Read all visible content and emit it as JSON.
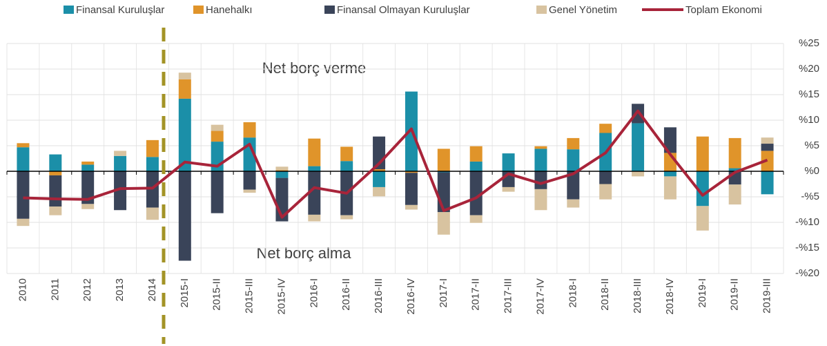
{
  "chart_data": {
    "type": "bar",
    "categories": [
      "2010",
      "2011",
      "2012",
      "2013",
      "2014",
      "2015-I",
      "2015-II",
      "2015-III",
      "2015-IV",
      "2016-I",
      "2016-II",
      "2016-III",
      "2016-IV",
      "2017-I",
      "2017-II",
      "2017-III",
      "2017-IV",
      "2018-I",
      "2018-II",
      "2018-III",
      "2018-IV",
      "2019-I",
      "2019-II",
      "2019-III"
    ],
    "series": [
      {
        "name": "Finansal Kuruluşlar",
        "color": "#1b8fa8",
        "values": [
          4.7,
          3.3,
          1.3,
          3.0,
          2.8,
          14.2,
          5.8,
          6.6,
          -1.3,
          1.0,
          2.0,
          -3.1,
          15.6,
          -0.2,
          1.9,
          3.5,
          4.4,
          4.3,
          7.5,
          9.4,
          -1.0,
          -6.8,
          0.6,
          -4.5
        ]
      },
      {
        "name": "Hanehalkı",
        "color": "#e0942a",
        "values": [
          0.8,
          -0.8,
          0.6,
          0,
          3.3,
          3.8,
          2.1,
          3.0,
          0.2,
          5.4,
          2.8,
          0.4,
          -0.3,
          4.4,
          3.0,
          0,
          0.5,
          2.2,
          1.8,
          0,
          3.6,
          6.8,
          5.9,
          4.0
        ]
      },
      {
        "name": "Finansal Olmayan Kuruluşlar",
        "color": "#3a4459",
        "values": [
          -9.3,
          -6.1,
          -6.4,
          -7.6,
          -7.1,
          -17.5,
          -8.2,
          -3.6,
          -8.5,
          -8.5,
          -8.6,
          6.4,
          -6.3,
          -7.8,
          -8.6,
          -3.1,
          -3.5,
          -5.5,
          -2.5,
          3.8,
          5.0,
          0,
          -2.6,
          1.4
        ]
      },
      {
        "name": "Genel Yönetim",
        "color": "#d8c3a0",
        "values": [
          -1.4,
          -1.7,
          -1.0,
          1.0,
          -2.4,
          1.3,
          1.2,
          -0.6,
          0.7,
          -1.3,
          -0.8,
          -1.8,
          -0.9,
          -4.4,
          -1.5,
          -0.9,
          -4.1,
          -1.6,
          -3.0,
          -1.0,
          -4.5,
          -4.8,
          -3.9,
          1.2
        ]
      }
    ],
    "line_series": {
      "name": "Toplam Ekonomi",
      "color": "#a8243a",
      "values": [
        -5.2,
        -5.4,
        -5.5,
        -3.4,
        -3.3,
        1.8,
        1.0,
        5.3,
        -9.0,
        -3.2,
        -4.3,
        1.5,
        8.3,
        -7.7,
        -5.2,
        -0.5,
        -2.4,
        -0.5,
        3.6,
        11.8,
        3.3,
        -4.7,
        -0.2,
        2.2
      ]
    },
    "ylim": [
      -20,
      25
    ],
    "yticks": [
      {
        "value": -20,
        "label": "-%20"
      },
      {
        "value": -15,
        "label": "-%15"
      },
      {
        "value": -10,
        "label": "-%10"
      },
      {
        "value": -5,
        "label": "-%5"
      },
      {
        "value": 0,
        "label": "%0"
      },
      {
        "value": 5,
        "label": "%5"
      },
      {
        "value": 10,
        "label": "%10"
      },
      {
        "value": 15,
        "label": "%15"
      },
      {
        "value": 20,
        "label": "%20"
      },
      {
        "value": 25,
        "label": "%25"
      }
    ],
    "grid": true,
    "annotations": [
      "Net borç verme",
      "Net borç alma"
    ]
  }
}
